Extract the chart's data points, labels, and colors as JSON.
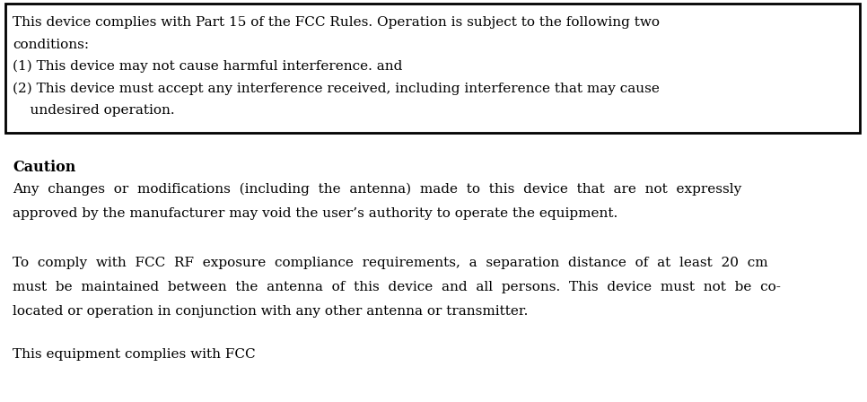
{
  "bg_color": "#ffffff",
  "text_color": "#000000",
  "box_line_color": "#000000",
  "box_text_lines": [
    "This device complies with Part 15 of the FCC Rules. Operation is subject to the following two",
    "conditions:",
    "(1) This device may not cause harmful interference. and",
    "(2) This device must accept any interference received, including interference that may cause",
    "    undesired operation."
  ],
  "caution_label": "Caution",
  "caution_line1_justified": "Any  changes  or  modifications  (including  the  antenna)  made  to  this  device  that  are  not  expressly",
  "caution_line2": "approved by the manufacturer may void the user’s authority to operate the equipment.",
  "para2_line1_justified": "To  comply  with  FCC  RF  exposure  compliance  requirements,  a  separation  distance  of  at  least  20  cm",
  "para2_line2_justified": "must  be  maintained  between  the  antenna  of  this  device  and  all  persons.  This  device  must  not  be  co-",
  "para2_line3": "located or operation in conjunction with any other antenna or transmitter.",
  "para3_line1": "This equipment complies with FCC",
  "font_size_box": 11.0,
  "font_size_body": 11.0,
  "font_size_caution_head": 11.5
}
